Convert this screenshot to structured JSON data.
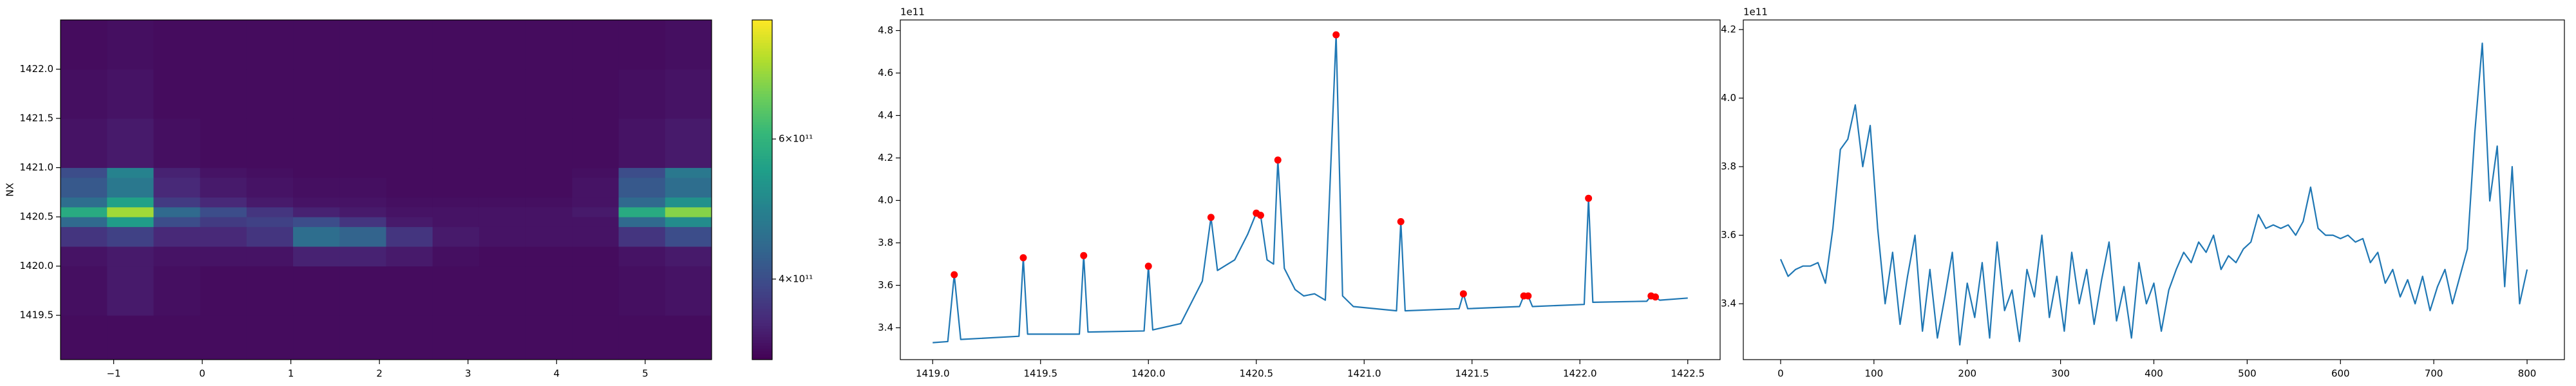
{
  "chart_data": [
    {
      "type": "heatmap",
      "ylabel": "NX",
      "colormap": "viridis",
      "x_edges": [
        -1.6,
        -1.075,
        -0.55,
        -0.025,
        0.5,
        1.025,
        1.55,
        2.075,
        2.6,
        3.125,
        3.65,
        4.175,
        4.7,
        5.225,
        5.75
      ],
      "y_edges": [
        1419.05,
        1419.5,
        1420.0,
        1420.2,
        1420.4,
        1420.5,
        1420.6,
        1420.7,
        1420.9,
        1421.0,
        1421.5,
        1422.0,
        1422.5
      ],
      "z": [
        [
          300000000000.0,
          300000000000.0,
          300000000000.0,
          300000000000.0,
          300000000000.0,
          300000000000.0,
          300000000000.0,
          300000000000.0,
          300000000000.0,
          300000000000.0,
          300000000000.0,
          300000000000.0,
          300000000000.0,
          300000000000.0
        ],
        [
          305000000000.0,
          320000000000.0,
          305000000000.0,
          300000000000.0,
          300000000000.0,
          300000000000.0,
          300000000000.0,
          300000000000.0,
          300000000000.0,
          300000000000.0,
          300000000000.0,
          300000000000.0,
          305000000000.0,
          310000000000.0
        ],
        [
          310000000000.0,
          320000000000.0,
          310000000000.0,
          310000000000.0,
          310000000000.0,
          330000000000.0,
          330000000000.0,
          320000000000.0,
          305000000000.0,
          300000000000.0,
          300000000000.0,
          300000000000.0,
          310000000000.0,
          320000000000.0
        ],
        [
          360000000000.0,
          380000000000.0,
          340000000000.0,
          340000000000.0,
          360000000000.0,
          460000000000.0,
          440000000000.0,
          360000000000.0,
          320000000000.0,
          310000000000.0,
          310000000000.0,
          310000000000.0,
          360000000000.0,
          400000000000.0
        ],
        [
          450000000000.0,
          550000000000.0,
          400000000000.0,
          370000000000.0,
          380000000000.0,
          400000000000.0,
          360000000000.0,
          320000000000.0,
          310000000000.0,
          310000000000.0,
          310000000000.0,
          310000000000.0,
          450000000000.0,
          520000000000.0
        ],
        [
          580000000000.0,
          700000000000.0,
          450000000000.0,
          400000000000.0,
          360000000000.0,
          330000000000.0,
          320000000000.0,
          310000000000.0,
          310000000000.0,
          310000000000.0,
          310000000000.0,
          320000000000.0,
          580000000000.0,
          680000000000.0
        ],
        [
          460000000000.0,
          560000000000.0,
          370000000000.0,
          340000000000.0,
          320000000000.0,
          310000000000.0,
          310000000000.0,
          305000000000.0,
          305000000000.0,
          305000000000.0,
          305000000000.0,
          310000000000.0,
          450000000000.0,
          530000000000.0
        ],
        [
          420000000000.0,
          480000000000.0,
          340000000000.0,
          320000000000.0,
          310000000000.0,
          305000000000.0,
          305000000000.0,
          300000000000.0,
          300000000000.0,
          300000000000.0,
          300000000000.0,
          310000000000.0,
          420000000000.0,
          460000000000.0
        ],
        [
          400000000000.0,
          500000000000.0,
          330000000000.0,
          310000000000.0,
          305000000000.0,
          300000000000.0,
          300000000000.0,
          300000000000.0,
          300000000000.0,
          300000000000.0,
          300000000000.0,
          305000000000.0,
          400000000000.0,
          480000000000.0
        ],
        [
          310000000000.0,
          320000000000.0,
          305000000000.0,
          300000000000.0,
          300000000000.0,
          300000000000.0,
          300000000000.0,
          300000000000.0,
          300000000000.0,
          300000000000.0,
          300000000000.0,
          300000000000.0,
          310000000000.0,
          320000000000.0
        ],
        [
          305000000000.0,
          310000000000.0,
          300000000000.0,
          300000000000.0,
          300000000000.0,
          300000000000.0,
          300000000000.0,
          300000000000.0,
          300000000000.0,
          300000000000.0,
          300000000000.0,
          300000000000.0,
          305000000000.0,
          310000000000.0
        ],
        [
          300000000000.0,
          305000000000.0,
          300000000000.0,
          300000000000.0,
          300000000000.0,
          300000000000.0,
          300000000000.0,
          300000000000.0,
          300000000000.0,
          300000000000.0,
          300000000000.0,
          300000000000.0,
          300000000000.0,
          305000000000.0
        ]
      ],
      "clim": [
        285000000000.0,
        770000000000.0
      ],
      "colorbar_ticks": [
        {
          "value": 400000000000.0,
          "label": "4×10¹¹"
        },
        {
          "value": 600000000000.0,
          "label": "6×10¹¹"
        }
      ],
      "xlim": [
        -1.6,
        5.75
      ],
      "ylim": [
        1419.05,
        1422.5
      ],
      "xticks": [
        {
          "value": -1,
          "label": "−1"
        },
        0,
        1,
        2,
        3,
        4,
        5
      ],
      "yticks": [
        1419.5,
        {
          "value": 1420,
          "label": "1420.0"
        },
        1420.5,
        {
          "value": 1421,
          "label": "1421.0"
        },
        1421.5,
        {
          "value": 1422,
          "label": "1422.0"
        }
      ]
    },
    {
      "type": "line",
      "y_offset_label": "1e11",
      "x": [
        1419.0,
        1419.07,
        1419.1,
        1419.13,
        1419.4,
        1419.42,
        1419.44,
        1419.68,
        1419.7,
        1419.72,
        1419.98,
        1420.0,
        1420.02,
        1420.15,
        1420.25,
        1420.29,
        1420.32,
        1420.4,
        1420.46,
        1420.5,
        1420.52,
        1420.55,
        1420.58,
        1420.6,
        1420.63,
        1420.68,
        1420.72,
        1420.77,
        1420.82,
        1420.87,
        1420.9,
        1420.95,
        1421.15,
        1421.17,
        1421.19,
        1421.44,
        1421.46,
        1421.48,
        1421.72,
        1421.74,
        1421.76,
        1421.78,
        1422.02,
        1422.04,
        1422.06,
        1422.31,
        1422.33,
        1422.35,
        1422.37,
        1422.5
      ],
      "series": [
        {
          "color": "#1f77b4",
          "values": [
            3.33,
            3.335,
            3.65,
            3.345,
            3.36,
            3.73,
            3.37,
            3.37,
            3.74,
            3.38,
            3.385,
            3.69,
            3.39,
            3.42,
            3.62,
            3.92,
            3.67,
            3.72,
            3.84,
            3.94,
            3.93,
            3.72,
            3.7,
            4.19,
            3.68,
            3.58,
            3.55,
            3.56,
            3.53,
            4.78,
            3.55,
            3.5,
            3.48,
            3.9,
            3.48,
            3.49,
            3.56,
            3.49,
            3.5,
            3.55,
            3.55,
            3.5,
            3.51,
            4.01,
            3.52,
            3.525,
            3.55,
            3.545,
            3.53,
            3.54
          ]
        }
      ],
      "markers": {
        "color": "#ff0000",
        "x": [
          1419.1,
          1419.42,
          1419.7,
          1420.0,
          1420.29,
          1420.5,
          1420.52,
          1420.6,
          1420.87,
          1421.17,
          1421.46,
          1421.74,
          1421.76,
          1422.04,
          1422.33,
          1422.35
        ],
        "values": [
          3.65,
          3.73,
          3.74,
          3.69,
          3.92,
          3.94,
          3.93,
          4.19,
          4.78,
          3.9,
          3.56,
          3.55,
          3.55,
          4.01,
          3.55,
          3.545
        ]
      },
      "xlim": [
        1418.85,
        1422.65
      ],
      "ylim": [
        3.25,
        4.85
      ],
      "xticks": [
        {
          "value": 1419,
          "label": "1419.0"
        },
        1419.5,
        {
          "value": 1420,
          "label": "1420.0"
        },
        1420.5,
        {
          "value": 1421,
          "label": "1421.0"
        },
        1421.5,
        {
          "value": 1422,
          "label": "1422.0"
        },
        1422.5
      ],
      "yticks": [
        3.4,
        3.6,
        3.8,
        {
          "value": 4,
          "label": "4.0"
        },
        4.2,
        4.4,
        4.6,
        4.8
      ]
    },
    {
      "type": "line",
      "y_offset_label": "1e11",
      "x": [
        0,
        8,
        16,
        24,
        32,
        40,
        48,
        56,
        64,
        72,
        80,
        88,
        96,
        104,
        112,
        120,
        128,
        136,
        144,
        152,
        160,
        168,
        176,
        184,
        192,
        200,
        208,
        216,
        224,
        232,
        240,
        248,
        256,
        264,
        272,
        280,
        288,
        296,
        304,
        312,
        320,
        328,
        336,
        344,
        352,
        360,
        368,
        376,
        384,
        392,
        400,
        408,
        416,
        424,
        432,
        440,
        448,
        456,
        464,
        472,
        480,
        488,
        496,
        504,
        512,
        520,
        528,
        536,
        544,
        552,
        560,
        568,
        576,
        584,
        592,
        600,
        608,
        616,
        624,
        632,
        640,
        648,
        656,
        664,
        672,
        680,
        688,
        696,
        704,
        712,
        720,
        728,
        736,
        744,
        752,
        760,
        768,
        776,
        784,
        792,
        800
      ],
      "series": [
        {
          "color": "#1f77b4",
          "values": [
            3.53,
            3.48,
            3.5,
            3.51,
            3.51,
            3.52,
            3.46,
            3.62,
            3.85,
            3.88,
            3.98,
            3.8,
            3.92,
            3.62,
            3.4,
            3.55,
            3.34,
            3.48,
            3.6,
            3.32,
            3.5,
            3.3,
            3.42,
            3.55,
            3.28,
            3.46,
            3.36,
            3.52,
            3.3,
            3.58,
            3.38,
            3.44,
            3.29,
            3.5,
            3.42,
            3.6,
            3.36,
            3.48,
            3.32,
            3.55,
            3.4,
            3.5,
            3.34,
            3.47,
            3.58,
            3.35,
            3.45,
            3.3,
            3.52,
            3.4,
            3.46,
            3.32,
            3.44,
            3.5,
            3.55,
            3.52,
            3.58,
            3.55,
            3.6,
            3.5,
            3.54,
            3.52,
            3.56,
            3.58,
            3.66,
            3.62,
            3.63,
            3.62,
            3.63,
            3.6,
            3.64,
            3.74,
            3.62,
            3.6,
            3.6,
            3.59,
            3.6,
            3.58,
            3.59,
            3.52,
            3.55,
            3.46,
            3.5,
            3.42,
            3.47,
            3.4,
            3.48,
            3.38,
            3.45,
            3.5,
            3.4,
            3.48,
            3.56,
            3.9,
            4.16,
            3.7,
            3.86,
            3.45,
            3.8,
            3.4,
            3.5
          ]
        }
      ],
      "xlim": [
        -40,
        840
      ],
      "ylim": [
        3.237,
        4.228
      ],
      "xticks": [
        0,
        100,
        200,
        300,
        400,
        500,
        600,
        700,
        800
      ],
      "yticks": [
        3.4,
        3.6,
        3.8,
        {
          "value": 4,
          "label": "4.0"
        },
        4.2
      ]
    }
  ]
}
